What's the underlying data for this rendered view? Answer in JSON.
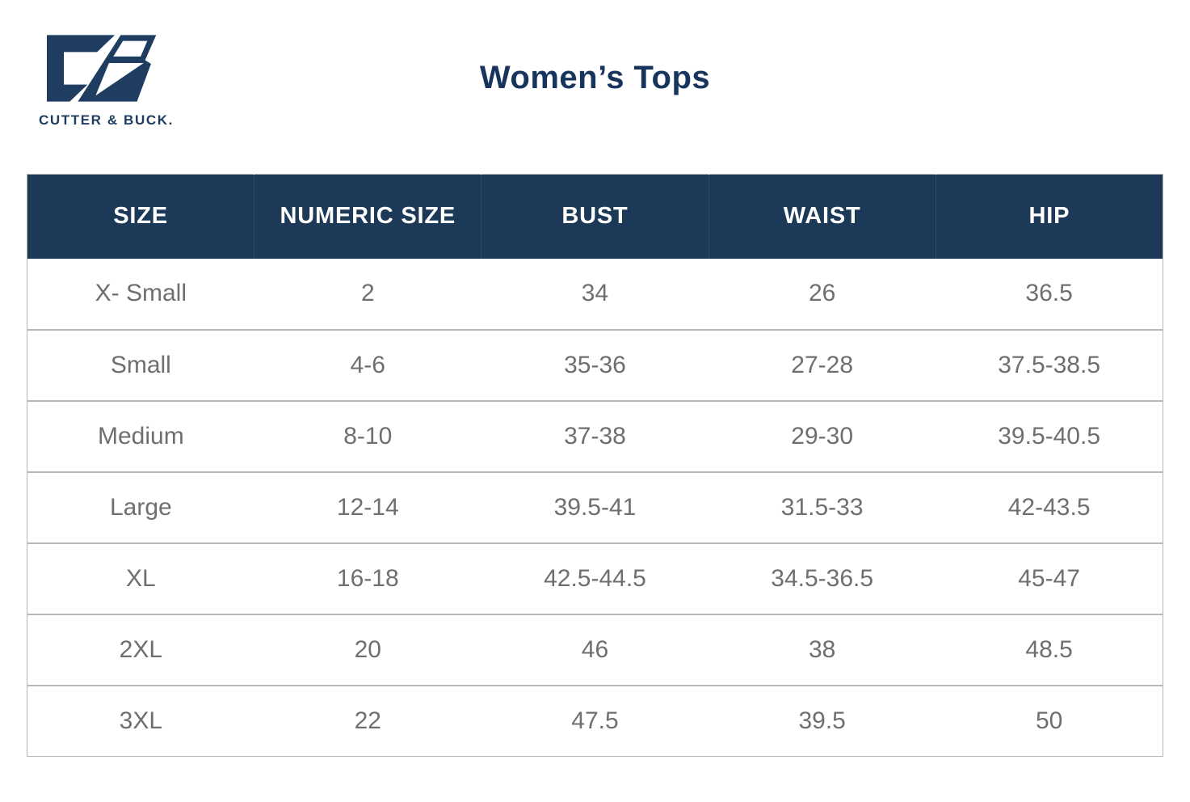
{
  "brand": {
    "wordmark": "CUTTER & BUCK.",
    "logo_icon": "cutter-and-buck-cb-monogram",
    "navy": "#1e3d60"
  },
  "page": {
    "title": "Women’s Tops"
  },
  "colors": {
    "header_bg": "#1c3a57",
    "header_text": "#ffffff",
    "body_text": "#6f6f6f",
    "border": "#b9b9b9",
    "title_navy": "#17345c"
  },
  "chart_data": {
    "type": "table",
    "title": "Women’s Tops",
    "columns": [
      "SIZE",
      "NUMERIC SIZE",
      "BUST",
      "WAIST",
      "HIP"
    ],
    "rows": [
      [
        "X- Small",
        "2",
        "34",
        "26",
        "36.5"
      ],
      [
        "Small",
        "4-6",
        "35-36",
        "27-28",
        "37.5-38.5"
      ],
      [
        "Medium",
        "8-10",
        "37-38",
        "29-30",
        "39.5-40.5"
      ],
      [
        "Large",
        "12-14",
        "39.5-41",
        "31.5-33",
        "42-43.5"
      ],
      [
        "XL",
        "16-18",
        "42.5-44.5",
        "34.5-36.5",
        "45-47"
      ],
      [
        "2XL",
        "20",
        "46",
        "38",
        "48.5"
      ],
      [
        "3XL",
        "22",
        "47.5",
        "39.5",
        "50"
      ]
    ]
  }
}
